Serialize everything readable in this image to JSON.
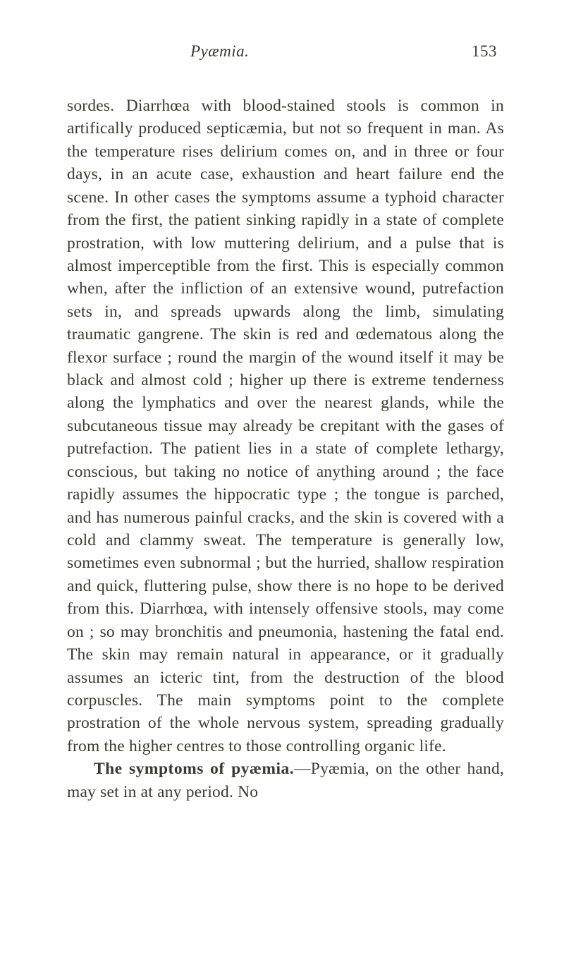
{
  "header": {
    "running_title": "Pyæmia.",
    "page_number": "153"
  },
  "body": {
    "para1": "sordes. Diarrhœa with blood-stained stools is common in artifically produced septicæmia, but not so frequent in man. As the temperature rises delirium comes on, and in three or four days, in an acute case, exhaustion and heart failure end the scene. In other cases the symptoms assume a typhoid character from the first, the patient sinking rapidly in a state of complete prostration, with low muttering delirium, and a pulse that is almost imperceptible from the first. This is especially common when, after the infliction of an extensive wound, putrefaction sets in, and spreads upwards along the limb, simulating traumatic gangrene. The skin is red and œdematous along the flexor surface ; round the margin of the wound itself it may be black and almost cold ; higher up there is extreme tenderness along the lymphatics and over the nearest glands, while the subcutaneous tissue may already be crepitant with the gases of putrefaction. The patient lies in a state of complete lethargy, conscious, but taking no notice of anything around ; the face rapidly assumes the hippocratic type ; the tongue is parched, and has numerous painful cracks, and the skin is covered with a cold and clammy sweat. The temperature is generally low, sometimes even subnormal ; but the hurried, shallow respiration and quick, fluttering pulse, show there is no hope to be derived from this. Diarrhœa, with intensely offensive stools, may come on ; so may bronchitis and pneumonia, hastening the fatal end. The skin may remain natural in appearance, or it gradually assumes an icteric tint, from the destruction of the blood corpuscles. The main symptoms point to the complete prostration of the whole nervous system, spreading gradually from the higher centres to those controlling organic life.",
    "para2_heading": "The symptoms of pyæmia.",
    "para2_rest": "—Pyæmia, on the other hand, may set in at any period. No"
  },
  "colors": {
    "text": "#3a3a32",
    "background": "#ffffff"
  },
  "typography": {
    "body_fontsize": 23.5,
    "header_fontsize": 23,
    "line_height": 1.38,
    "font_family": "Georgia, Times New Roman, serif"
  }
}
